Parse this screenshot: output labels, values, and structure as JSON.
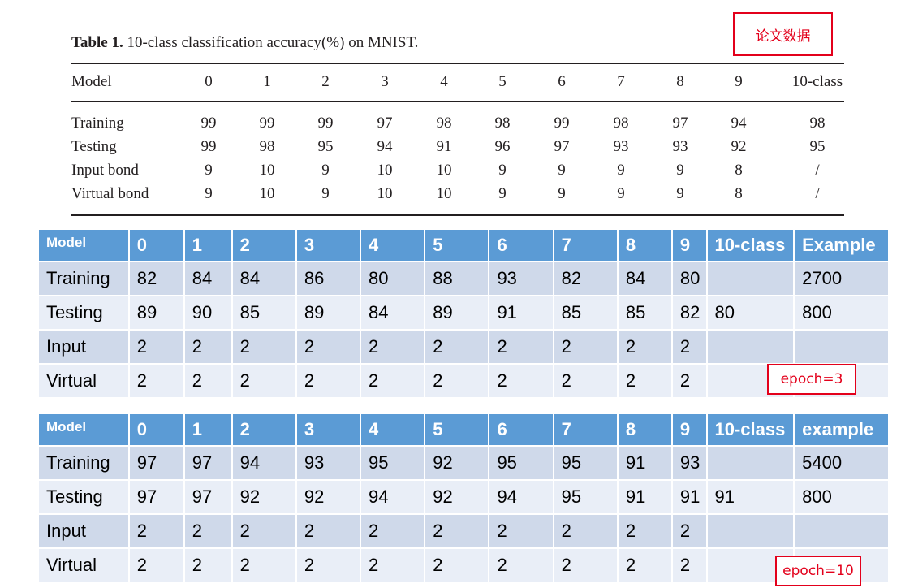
{
  "paper_table": {
    "caption_bold": "Table 1.",
    "caption_rest": " 10-class classification accuracy(%) on MNIST.",
    "header": [
      "Model",
      "0",
      "1",
      "2",
      "3",
      "4",
      "5",
      "6",
      "7",
      "8",
      "9",
      "10-class"
    ],
    "rows": [
      [
        "Training",
        "99",
        "99",
        "99",
        "97",
        "98",
        "98",
        "99",
        "98",
        "97",
        "94",
        "98"
      ],
      [
        "Testing",
        "99",
        "98",
        "95",
        "94",
        "91",
        "96",
        "97",
        "93",
        "93",
        "92",
        "95"
      ],
      [
        "Input bond",
        "9",
        "10",
        "9",
        "10",
        "10",
        "9",
        "9",
        "9",
        "9",
        "8",
        "/"
      ],
      [
        "Virtual bond",
        "9",
        "10",
        "9",
        "10",
        "10",
        "9",
        "9",
        "9",
        "9",
        "8",
        "/"
      ]
    ],
    "note": "论文数据"
  },
  "table_epoch3": {
    "header": [
      "Model",
      "0",
      "1",
      "2",
      "3",
      "4",
      "5",
      "6",
      "7",
      "8",
      "9",
      "10-class",
      "Example"
    ],
    "rows": [
      [
        "Training",
        "82",
        "84",
        "84",
        "86",
        "80",
        "88",
        "93",
        "82",
        "84",
        "80",
        "",
        "2700"
      ],
      [
        "Testing",
        "89",
        "90",
        "85",
        "89",
        "84",
        "89",
        "91",
        "85",
        "85",
        "82",
        "80",
        "800"
      ],
      [
        "Input",
        "2",
        "2",
        "2",
        "2",
        "2",
        "2",
        "2",
        "2",
        "2",
        "2",
        "",
        ""
      ],
      [
        "Virtual",
        "2",
        "2",
        "2",
        "2",
        "2",
        "2",
        "2",
        "2",
        "2",
        "2",
        "",
        ""
      ]
    ],
    "note": "epoch=3"
  },
  "table_epoch10": {
    "header": [
      "Model",
      "0",
      "1",
      "2",
      "3",
      "4",
      "5",
      "6",
      "7",
      "8",
      "9",
      "10-class",
      "example"
    ],
    "rows": [
      [
        "Training",
        "97",
        "97",
        "94",
        "93",
        "95",
        "92",
        "95",
        "95",
        "91",
        "93",
        "",
        "5400"
      ],
      [
        "Testing",
        "97",
        "97",
        "92",
        "92",
        "94",
        "92",
        "94",
        "95",
        "91",
        "91",
        "91",
        "800"
      ],
      [
        "Input",
        "2",
        "2",
        "2",
        "2",
        "2",
        "2",
        "2",
        "2",
        "2",
        "2",
        "",
        ""
      ],
      [
        "Virtual",
        "2",
        "2",
        "2",
        "2",
        "2",
        "2",
        "2",
        "2",
        "2",
        "2",
        "",
        ""
      ]
    ],
    "note": "epoch=10"
  },
  "colors": {
    "header_blue": "#5b9bd5",
    "row_dark": "#cfd9ea",
    "row_light": "#e9eef7",
    "note_red": "#e3001b"
  }
}
